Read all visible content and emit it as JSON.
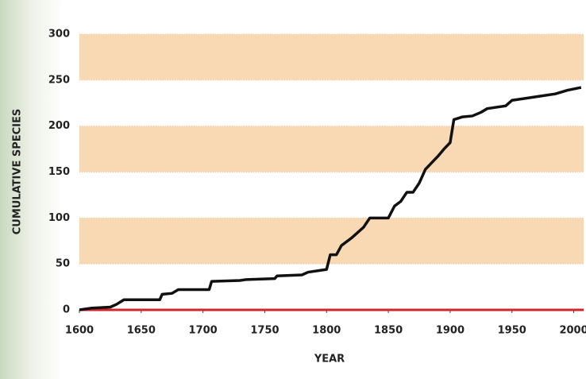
{
  "chart_data": {
    "type": "line",
    "x_label": "YEAR",
    "y_label": "CUMULATIVE SPECIES",
    "x": [
      1600,
      1610,
      1625,
      1630,
      1636,
      1665,
      1667,
      1675,
      1680,
      1705,
      1707,
      1730,
      1735,
      1758,
      1760,
      1780,
      1785,
      1795,
      1800,
      1803,
      1808,
      1812,
      1820,
      1830,
      1835,
      1850,
      1855,
      1860,
      1865,
      1870,
      1875,
      1880,
      1885,
      1890,
      1895,
      1900,
      1903,
      1910,
      1918,
      1925,
      1930,
      1945,
      1950,
      1960,
      1975,
      1985,
      1995,
      2006
    ],
    "series": [
      {
        "color": "#111111",
        "values": [
          0,
          2,
          3,
          6,
          11,
          11,
          17,
          18,
          22,
          22,
          31,
          32,
          33,
          34,
          37,
          38,
          41,
          43,
          44,
          60,
          60,
          70,
          78,
          90,
          100,
          100,
          113,
          118,
          128,
          128,
          138,
          153,
          160,
          167,
          175,
          182,
          207,
          210,
          211,
          215,
          219,
          222,
          228,
          230,
          233,
          235,
          239,
          242
        ]
      }
    ],
    "xlim": [
      1600,
      2008
    ],
    "xticks": [
      1600,
      1650,
      1700,
      1750,
      1800,
      1850,
      1900,
      1950,
      2000
    ],
    "ylim": [
      0,
      300
    ],
    "yticks": [
      0,
      50,
      100,
      150,
      200,
      250,
      300
    ],
    "bands": [
      [
        50,
        100
      ],
      [
        150,
        200
      ],
      [
        250,
        300
      ]
    ],
    "band_color": "#f9d9b3",
    "baseline_color": "#d0252b"
  }
}
